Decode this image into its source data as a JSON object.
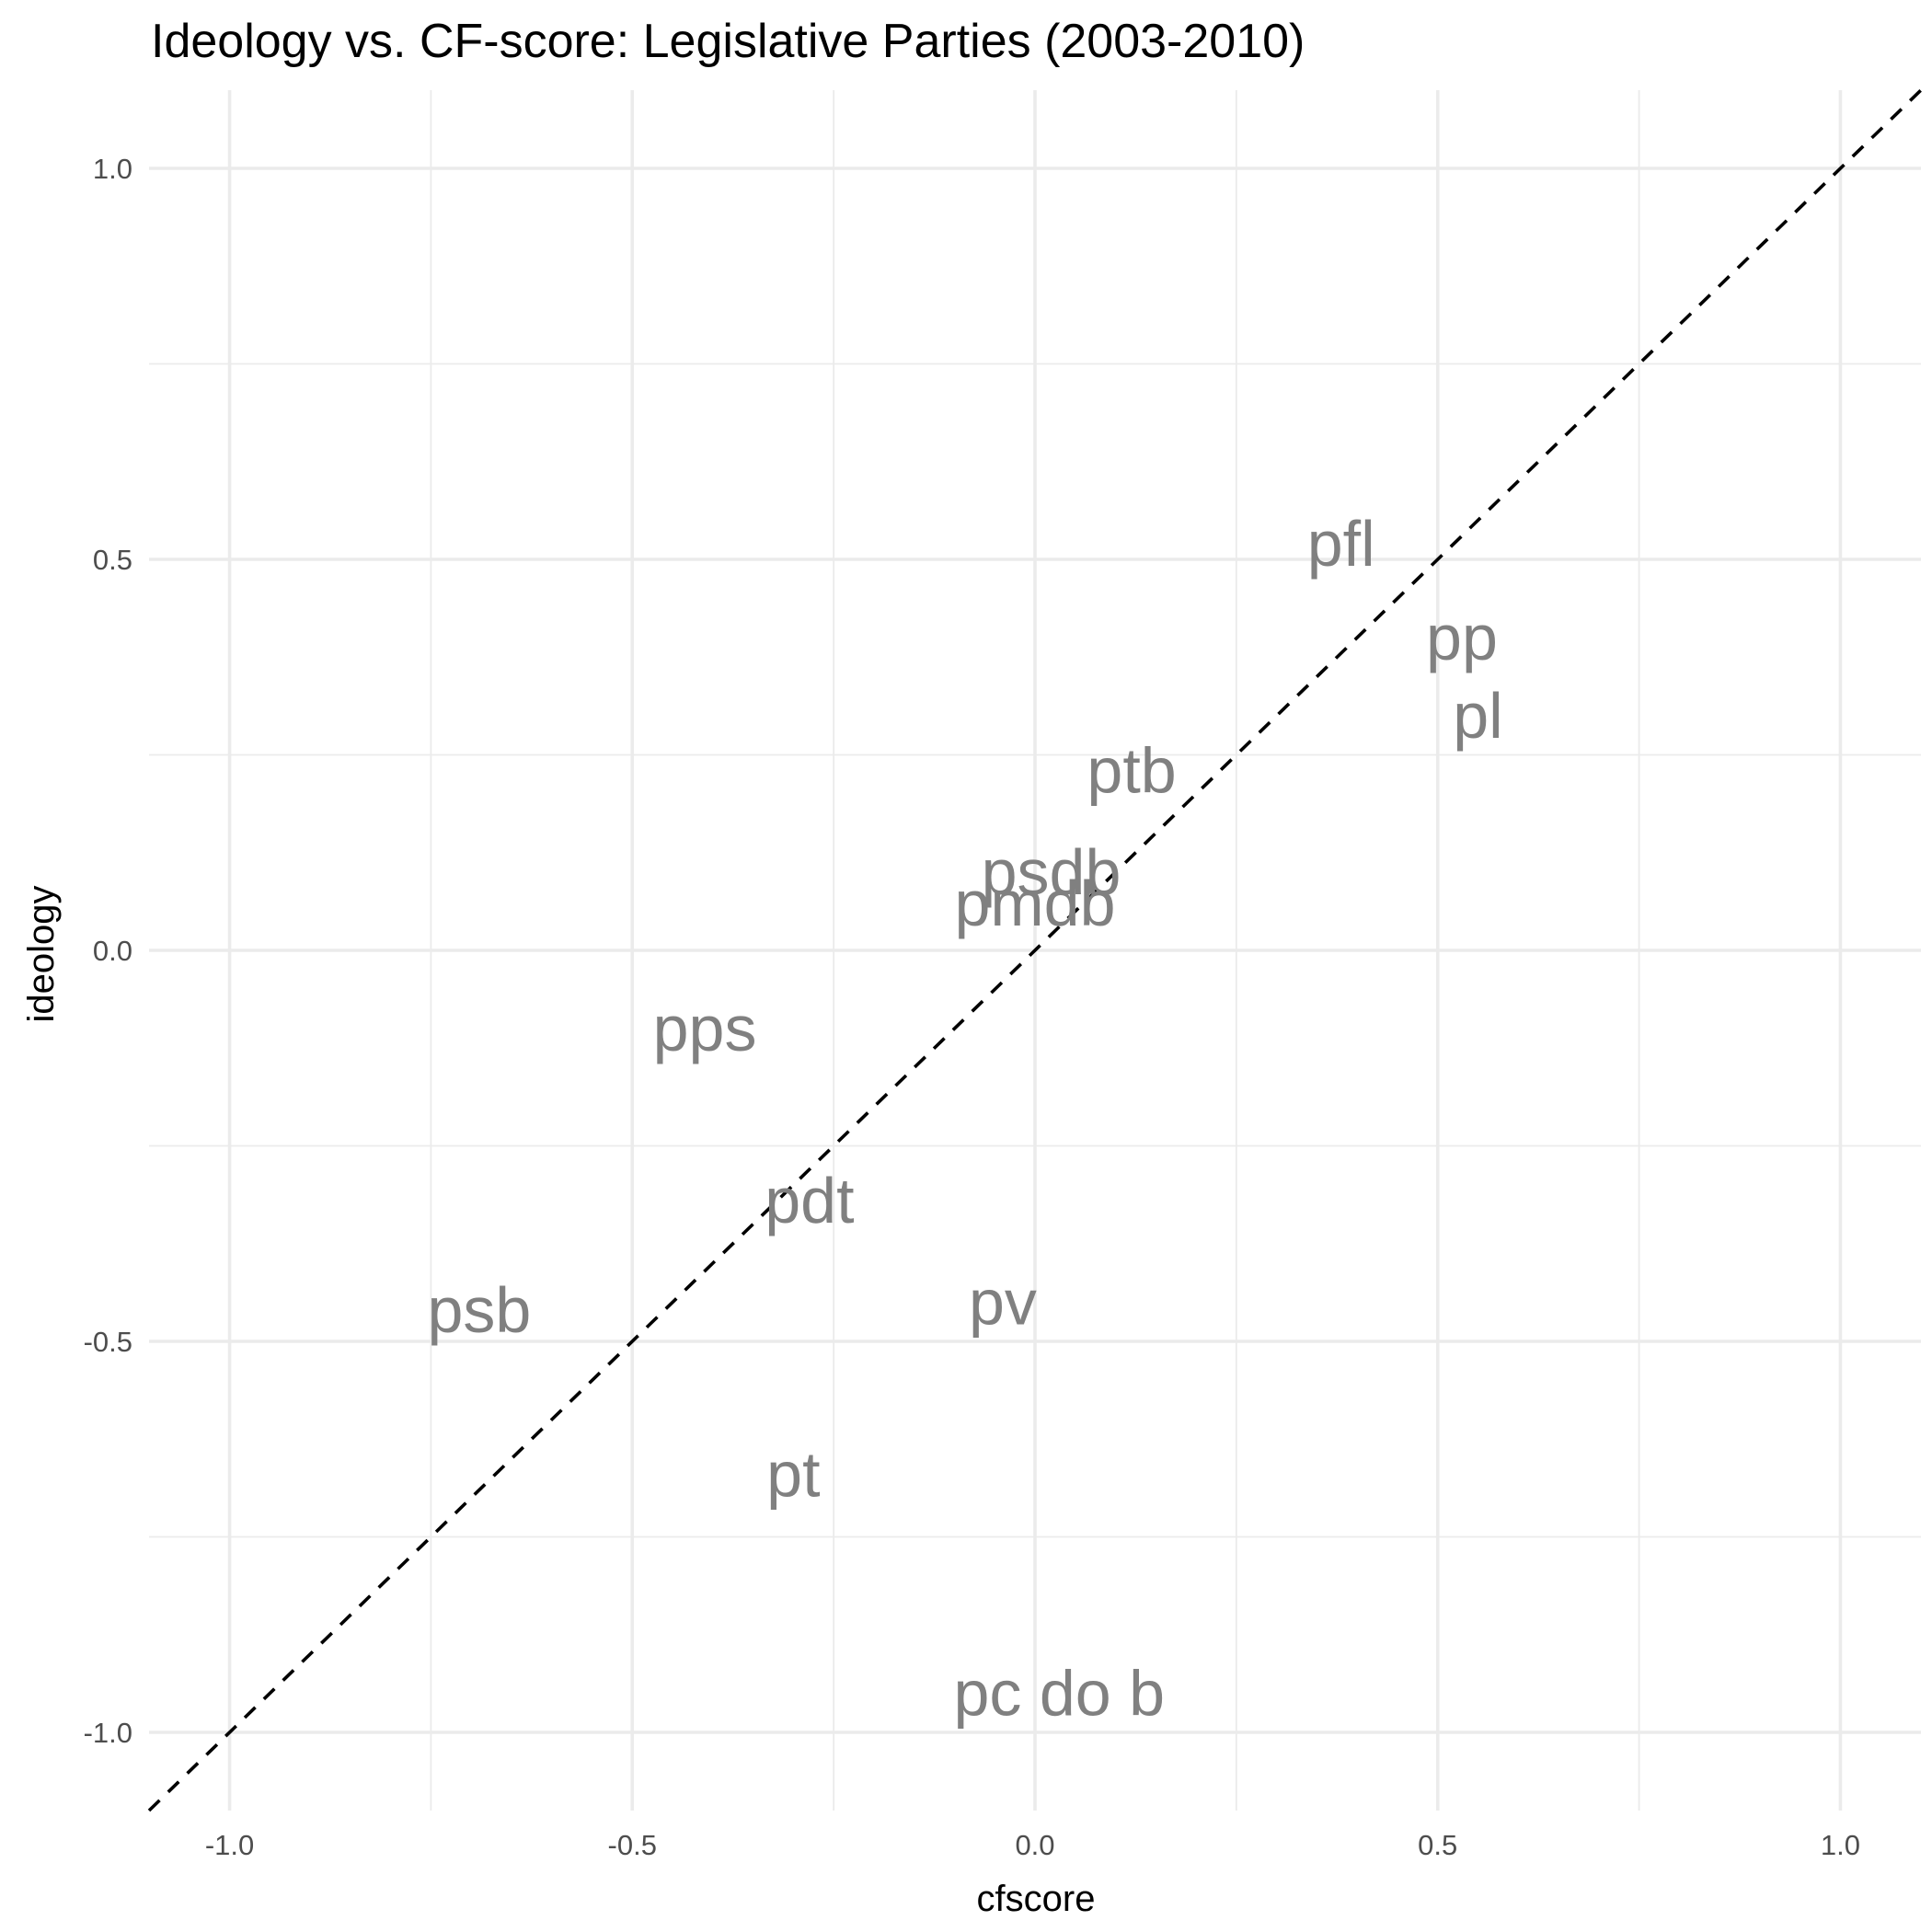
{
  "chart_data": {
    "type": "scatter",
    "title": "Ideology vs. CF-score: Legislative Parties (2003-2010)",
    "xlabel": "cfscore",
    "ylabel": "ideology",
    "xlim": [
      -1.1,
      1.1
    ],
    "ylim": [
      -1.1,
      1.1
    ],
    "x_ticks": [
      -1.0,
      -0.5,
      0.0,
      0.5,
      1.0
    ],
    "y_ticks": [
      -1.0,
      -0.5,
      0.0,
      0.5,
      1.0
    ],
    "x_tick_labels": [
      "-1.0",
      "-0.5",
      "0.0",
      "0.5",
      "1.0"
    ],
    "y_tick_labels": [
      "-1.0",
      "-0.5",
      "0.0",
      "0.5",
      "1.0"
    ],
    "grid": true,
    "reference_line": {
      "slope": 1,
      "intercept": 0,
      "style": "dashed",
      "color": "#000000"
    },
    "label_color": "#808080",
    "points": [
      {
        "label": "pfl",
        "x": 0.38,
        "y": 0.52
      },
      {
        "label": "pp",
        "x": 0.53,
        "y": 0.4
      },
      {
        "label": "pl",
        "x": 0.55,
        "y": 0.3
      },
      {
        "label": "ptb",
        "x": 0.12,
        "y": 0.23
      },
      {
        "label": "psdb",
        "x": 0.02,
        "y": 0.1
      },
      {
        "label": "pmdb",
        "x": 0.0,
        "y": 0.06
      },
      {
        "label": "pps",
        "x": -0.41,
        "y": -0.1
      },
      {
        "label": "pdt",
        "x": -0.28,
        "y": -0.32
      },
      {
        "label": "psb",
        "x": -0.69,
        "y": -0.46
      },
      {
        "label": "pv",
        "x": -0.04,
        "y": -0.45
      },
      {
        "label": "pt",
        "x": -0.3,
        "y": -0.67
      },
      {
        "label": "pc do b",
        "x": 0.03,
        "y": -0.95
      }
    ]
  }
}
